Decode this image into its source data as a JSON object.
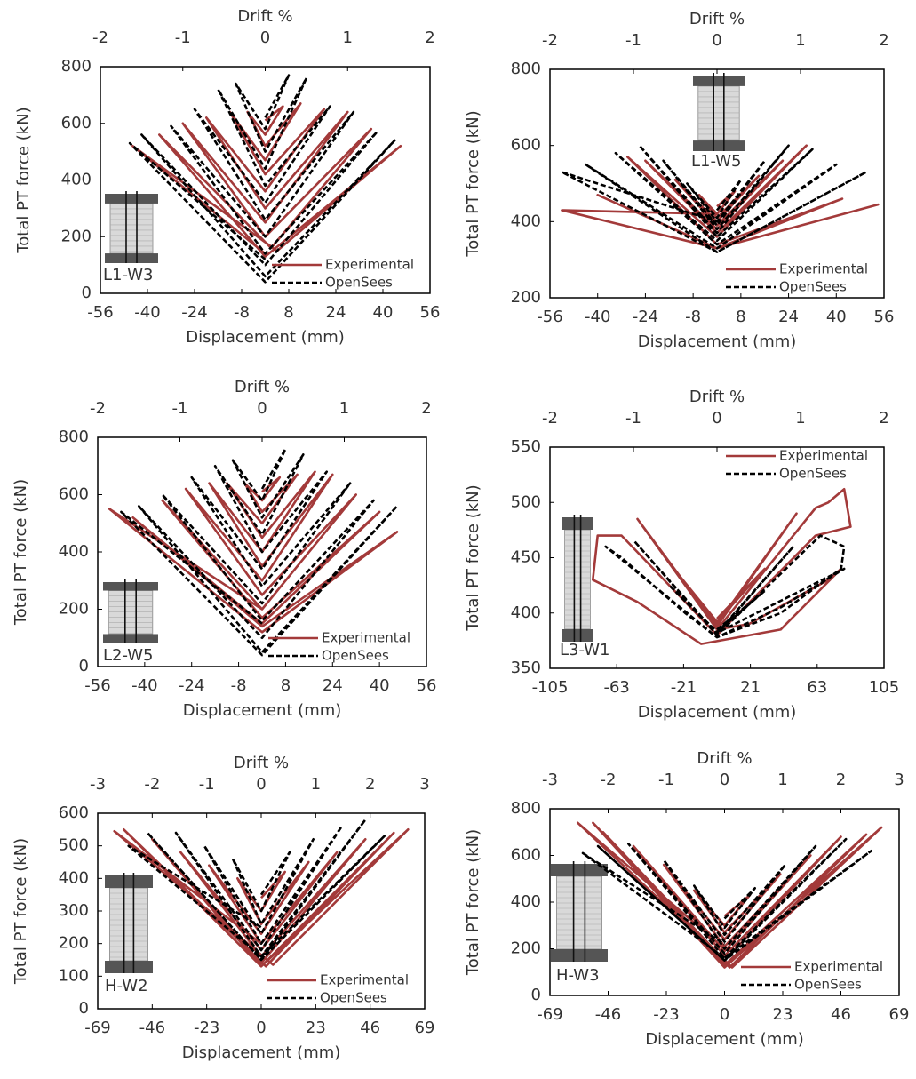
{
  "chart_data": [
    {
      "type": "line",
      "x2label": "Drift %",
      "xlabel": "Displacement (mm)",
      "ylabel": "Total PT force (kN)",
      "panel_label": "L1-W3",
      "legend": "lower right",
      "xlim": [
        -56,
        56
      ],
      "xticks": [
        -56,
        -40,
        -24,
        -8,
        8,
        24,
        40,
        56
      ],
      "x2lim": [
        -2,
        2
      ],
      "x2ticks": [
        -2,
        -1,
        0,
        1,
        2
      ],
      "ylim": [
        0,
        800
      ],
      "yticks": [
        0,
        200,
        400,
        600,
        800
      ],
      "series": [
        {
          "name": "Experimental",
          "color": "#a33a3a",
          "linestyle": "solid",
          "x": [
            0,
            6,
            0,
            -6,
            0,
            12,
            0,
            -12,
            0,
            20,
            0,
            -20,
            0,
            28,
            0,
            -28,
            0,
            36,
            2,
            -36,
            0,
            46,
            4,
            -45,
            0
          ],
          "values": [
            610,
            660,
            560,
            640,
            520,
            670,
            470,
            640,
            420,
            650,
            360,
            620,
            300,
            640,
            250,
            600,
            200,
            580,
            160,
            560,
            130,
            520,
            150,
            520,
            140
          ]
        },
        {
          "name": "OpenSees",
          "color": "#000000",
          "linestyle": "dashed",
          "x": [
            0,
            8,
            0,
            -10,
            0,
            14,
            0,
            -16,
            0,
            22,
            0,
            -24,
            0,
            30,
            0,
            -32,
            0,
            38,
            0,
            -42,
            0,
            44,
            0,
            -46,
            0
          ],
          "values": [
            620,
            770,
            580,
            740,
            500,
            760,
            440,
            720,
            380,
            660,
            320,
            650,
            260,
            640,
            200,
            590,
            140,
            570,
            100,
            560,
            60,
            540,
            40,
            530,
            120
          ]
        }
      ]
    },
    {
      "type": "line",
      "x2label": "Drift %",
      "xlabel": "Displacement (mm)",
      "ylabel": "Total PT force (kN)",
      "panel_label": "L1-W5",
      "legend": "lower right",
      "xlim": [
        -56,
        56
      ],
      "xticks": [
        -56,
        -40,
        -24,
        -8,
        8,
        24,
        40,
        56
      ],
      "x2lim": [
        -2,
        2
      ],
      "x2ticks": [
        -2,
        -1,
        0,
        1,
        2
      ],
      "ylim": [
        200,
        800
      ],
      "yticks": [
        200,
        400,
        600,
        800
      ],
      "series": [
        {
          "name": "Experimental",
          "color": "#a33a3a",
          "linestyle": "solid",
          "x": [
            0,
            6,
            0,
            -6,
            0,
            14,
            0,
            -14,
            0,
            22,
            0,
            -24,
            0,
            30,
            0,
            -30,
            0,
            42,
            0,
            -40,
            0,
            54,
            0,
            -52,
            0
          ],
          "values": [
            440,
            480,
            420,
            470,
            410,
            520,
            400,
            510,
            390,
            560,
            380,
            560,
            370,
            600,
            360,
            570,
            340,
            460,
            330,
            470,
            330,
            445,
            330,
            430,
            420
          ]
        },
        {
          "name": "OpenSees",
          "color": "#000000",
          "linestyle": "dashed",
          "x": [
            0,
            8,
            0,
            -10,
            0,
            16,
            0,
            -18,
            0,
            24,
            0,
            -26,
            0,
            32,
            0,
            -34,
            0,
            40,
            0,
            -44,
            0,
            50,
            0,
            -52,
            0
          ],
          "values": [
            430,
            510,
            410,
            500,
            400,
            560,
            390,
            560,
            380,
            600,
            370,
            600,
            360,
            590,
            350,
            580,
            340,
            550,
            330,
            550,
            320,
            530,
            320,
            530,
            400
          ]
        }
      ]
    },
    {
      "type": "line",
      "x2label": "Drift %",
      "xlabel": "Displacement (mm)",
      "ylabel": "Total PT force (kN)",
      "panel_label": "L2-W5",
      "legend": "lower right",
      "xlim": [
        -56,
        56
      ],
      "xticks": [
        -56,
        -40,
        -24,
        -8,
        8,
        24,
        40,
        56
      ],
      "x2lim": [
        -2,
        2
      ],
      "x2ticks": [
        -2,
        -1,
        0,
        1,
        2
      ],
      "ylim": [
        0,
        800
      ],
      "yticks": [
        0,
        200,
        400,
        600,
        800
      ],
      "series": [
        {
          "name": "Experimental",
          "color": "#a33a3a",
          "linestyle": "solid",
          "x": [
            0,
            6,
            0,
            -6,
            0,
            12,
            0,
            -12,
            0,
            18,
            0,
            -18,
            0,
            24,
            0,
            -26,
            0,
            32,
            0,
            -34,
            0,
            40,
            0,
            -44,
            0,
            46,
            0,
            -52,
            0
          ],
          "values": [
            610,
            660,
            580,
            640,
            540,
            670,
            500,
            640,
            450,
            680,
            400,
            640,
            350,
            670,
            300,
            620,
            250,
            600,
            200,
            580,
            170,
            540,
            150,
            520,
            140,
            470,
            120,
            550,
            200
          ]
        },
        {
          "name": "OpenSees",
          "color": "#000000",
          "linestyle": "dashed",
          "x": [
            0,
            8,
            0,
            -10,
            0,
            14,
            0,
            -16,
            0,
            22,
            0,
            -24,
            0,
            30,
            0,
            -34,
            0,
            38,
            0,
            -42,
            0,
            46,
            0,
            -48,
            0
          ],
          "values": [
            620,
            760,
            580,
            720,
            520,
            740,
            460,
            700,
            400,
            680,
            340,
            660,
            280,
            640,
            220,
            600,
            160,
            580,
            100,
            560,
            50,
            560,
            40,
            540,
            150
          ]
        }
      ]
    },
    {
      "type": "line",
      "x2label": "Drift %",
      "xlabel": "Displacement (mm)",
      "ylabel": "Total PT force (kN)",
      "panel_label": "L3-W1",
      "legend": "upper right",
      "xlim": [
        -105,
        105
      ],
      "xticks": [
        -105,
        -63,
        -21,
        21,
        63,
        105
      ],
      "x2lim": [
        -2,
        2
      ],
      "x2ticks": [
        -2,
        -1,
        0,
        1,
        2
      ],
      "ylim": [
        350,
        550
      ],
      "yticks": [
        350,
        400,
        450,
        500,
        550
      ],
      "series": [
        {
          "name": "Experimental",
          "color": "#a33a3a",
          "linestyle": "solid",
          "x": [
            0,
            30,
            0,
            -30,
            0,
            50,
            0,
            -50,
            0,
            62,
            70,
            80,
            84,
            62,
            0,
            -60,
            -75,
            -78,
            -50,
            -10,
            40,
            78,
            70,
            20,
            0
          ],
          "values": [
            395,
            440,
            392,
            445,
            390,
            490,
            388,
            485,
            385,
            495,
            500,
            512,
            478,
            470,
            380,
            470,
            470,
            430,
            410,
            372,
            385,
            440,
            430,
            390,
            385
          ]
        },
        {
          "name": "OpenSees",
          "color": "#000000",
          "linestyle": "dashed",
          "x": [
            0,
            30,
            0,
            -30,
            0,
            48,
            0,
            -52,
            0,
            65,
            80,
            78,
            40,
            0,
            -70,
            -60,
            -20,
            0,
            40,
            80,
            0
          ],
          "values": [
            385,
            420,
            383,
            425,
            382,
            460,
            381,
            465,
            380,
            470,
            460,
            440,
            400,
            378,
            460,
            450,
            400,
            378,
            405,
            440,
            382
          ]
        }
      ]
    },
    {
      "type": "line",
      "x2label": "Drift %",
      "xlabel": "Displacement (mm)",
      "ylabel": "Total PT force (kN)",
      "panel_label": "H-W2",
      "legend": "lower right",
      "xlim": [
        -69,
        69
      ],
      "xticks": [
        -69,
        -46,
        -23,
        0,
        23,
        46,
        69
      ],
      "x2lim": [
        -3,
        3
      ],
      "x2ticks": [
        -3,
        -2,
        -1,
        0,
        1,
        2,
        3
      ],
      "ylim": [
        0,
        600
      ],
      "yticks": [
        0,
        100,
        200,
        300,
        400,
        500,
        600
      ],
      "series": [
        {
          "name": "Experimental",
          "color": "#a33a3a",
          "linestyle": "solid",
          "x": [
            0,
            10,
            0,
            -10,
            0,
            20,
            0,
            -22,
            0,
            32,
            0,
            -34,
            0,
            44,
            0,
            -46,
            0,
            56,
            2,
            -58,
            0,
            62,
            5,
            -62,
            0
          ],
          "values": [
            340,
            420,
            300,
            400,
            260,
            450,
            230,
            440,
            200,
            480,
            180,
            480,
            160,
            520,
            140,
            520,
            130,
            540,
            130,
            550,
            130,
            550,
            135,
            545,
            200
          ]
        },
        {
          "name": "OpenSees",
          "color": "#000000",
          "linestyle": "dashed",
          "x": [
            0,
            12,
            0,
            -12,
            0,
            22,
            0,
            -24,
            0,
            34,
            0,
            -36,
            0,
            44,
            0,
            -48,
            0,
            52,
            0,
            -56,
            0
          ],
          "values": [
            350,
            480,
            300,
            460,
            260,
            520,
            230,
            500,
            200,
            560,
            180,
            540,
            160,
            580,
            150,
            540,
            150,
            530,
            160,
            500,
            250
          ]
        }
      ]
    },
    {
      "type": "line",
      "x2label": "Drift %",
      "xlabel": "Displacement (mm)",
      "ylabel": "Total PT force (kN)",
      "panel_label": "H-W3",
      "legend": "lower right",
      "xlim": [
        -69,
        69
      ],
      "xticks": [
        -69,
        -46,
        -23,
        0,
        23,
        46,
        69
      ],
      "x2lim": [
        -3,
        3
      ],
      "x2ticks": [
        -3,
        -2,
        -1,
        0,
        1,
        2,
        3
      ],
      "ylim": [
        0,
        800
      ],
      "yticks": [
        0,
        200,
        400,
        600,
        800
      ],
      "series": [
        {
          "name": "Experimental",
          "color": "#a33a3a",
          "linestyle": "solid",
          "x": [
            0,
            10,
            0,
            -12,
            0,
            22,
            0,
            -24,
            0,
            34,
            0,
            -36,
            0,
            46,
            0,
            -48,
            0,
            56,
            2,
            -52,
            0,
            62,
            3,
            -58,
            0
          ],
          "values": [
            340,
            430,
            300,
            450,
            270,
            520,
            240,
            560,
            210,
            600,
            190,
            640,
            170,
            680,
            150,
            700,
            130,
            690,
            120,
            740,
            120,
            720,
            120,
            740,
            200
          ]
        },
        {
          "name": "OpenSees",
          "color": "#000000",
          "linestyle": "dashed",
          "x": [
            0,
            12,
            0,
            -12,
            0,
            24,
            0,
            -24,
            0,
            36,
            0,
            -38,
            0,
            48,
            0,
            -50,
            0,
            58,
            0,
            -56,
            0
          ],
          "values": [
            330,
            460,
            290,
            470,
            260,
            560,
            230,
            580,
            200,
            640,
            180,
            650,
            160,
            670,
            150,
            640,
            150,
            620,
            160,
            610,
            220
          ]
        }
      ]
    }
  ]
}
